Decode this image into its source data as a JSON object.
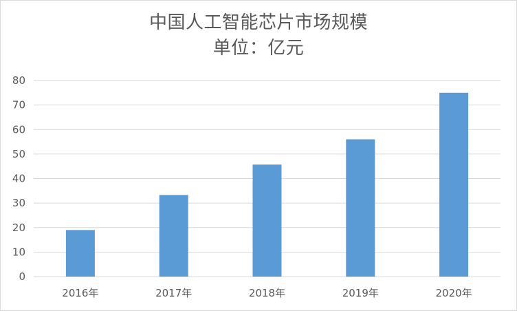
{
  "chart_data": {
    "type": "bar",
    "title": "中国人工智能芯片市场规模",
    "subtitle": "单位：亿元",
    "categories": [
      "2016年",
      "2017年",
      "2018年",
      "2019年",
      "2020年"
    ],
    "values": [
      19,
      33.3,
      45.7,
      56,
      75
    ],
    "ylim": [
      0,
      80
    ],
    "yticks": [
      0,
      10,
      20,
      30,
      40,
      50,
      60,
      70,
      80
    ],
    "grid": true,
    "legend": "none",
    "colors": {
      "bar": "#5b9bd5",
      "grid": "#d9d9d9",
      "text": "#595959"
    }
  }
}
